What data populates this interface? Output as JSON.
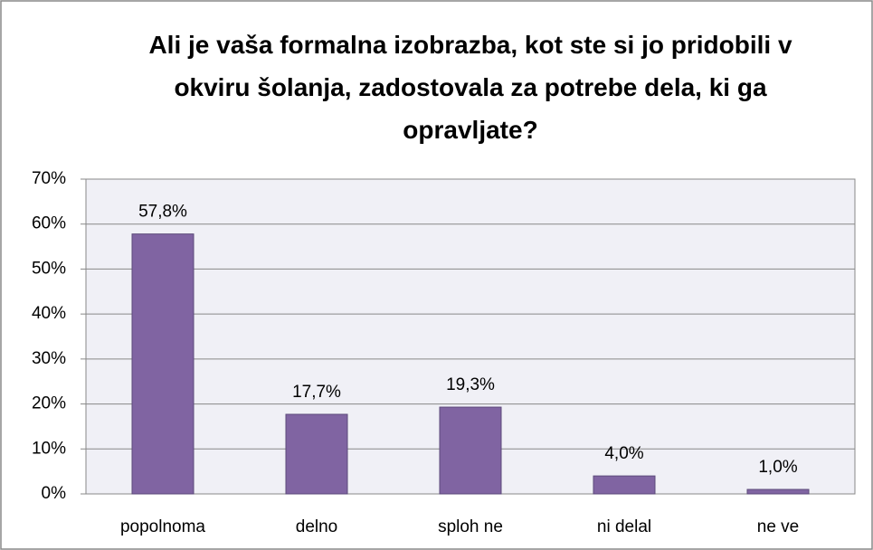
{
  "chart_data": {
    "type": "bar",
    "title": "Ali je vaša formalna izobrazba, kot ste si jo pridobili v okviru šolanja, zadostovala za potrebe dela, ki ga opravljate?",
    "categories": [
      "popolnoma",
      "delno",
      "sploh ne",
      "ni delal",
      "ne ve"
    ],
    "values": [
      57.8,
      17.7,
      19.3,
      4.0,
      1.0
    ],
    "value_labels": [
      "57,8%",
      "17,7%",
      "19,3%",
      "4,0%",
      "1,0%"
    ],
    "color": "#8064a2",
    "ylim": [
      0,
      70
    ],
    "yticks": [
      {
        "value": 0,
        "label": "0%"
      },
      {
        "value": 10,
        "label": "10%"
      },
      {
        "value": 20,
        "label": "20%"
      },
      {
        "value": 30,
        "label": "30%"
      },
      {
        "value": 40,
        "label": "40%"
      },
      {
        "value": 50,
        "label": "50%"
      },
      {
        "value": 60,
        "label": "60%"
      },
      {
        "value": 70,
        "label": "70%"
      }
    ],
    "grid": true
  }
}
